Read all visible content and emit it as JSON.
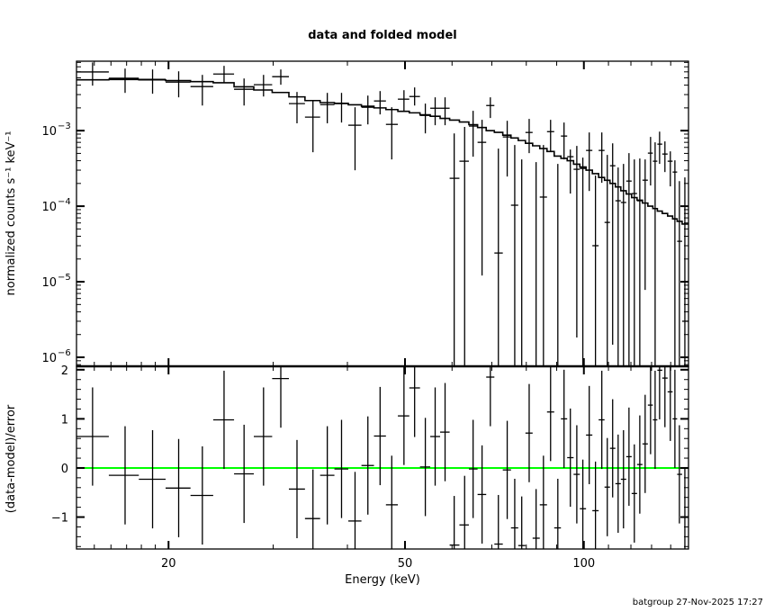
{
  "chart_data": [
    {
      "type": "scatter",
      "panel": "top",
      "title": "data and folded model",
      "ylabel": "normalized counts s⁻¹ keV⁻¹",
      "xscale": "log",
      "yscale": "log",
      "xlim": [
        14,
        150
      ],
      "ylim": [
        7.6e-07,
        0.0083
      ],
      "x_ticks": [
        20,
        50,
        100
      ],
      "y_ticks": [
        {
          "value": 0.001,
          "label": "10",
          "exp": "−3"
        },
        {
          "value": 0.0001,
          "label": "10",
          "exp": "−4"
        },
        {
          "value": 1e-05,
          "label": "10",
          "exp": "−5"
        },
        {
          "value": 1e-06,
          "label": "10",
          "exp": "−6"
        }
      ],
      "energy": [
        14.9,
        16.9,
        18.8,
        20.8,
        22.8,
        24.8,
        26.8,
        28.9,
        30.9,
        32.9,
        35.0,
        37.0,
        39.1,
        41.2,
        43.3,
        45.4,
        47.5,
        49.8,
        51.9,
        54.1,
        56.2,
        58.4,
        60.5,
        63.0,
        65.1,
        67.4,
        69.6,
        71.8,
        74.3,
        76.5,
        78.6,
        80.9,
        83.1,
        85.5,
        87.9,
        90.4,
        92.6,
        94.9,
        97.3,
        99.6,
        102.1,
        104.6,
        107.2,
        109.5,
        111.8,
        114.2,
        116.6,
        119.1,
        121.6,
        124.2,
        126.8,
        129.5,
        131.8,
        134.1,
        136.9,
        139.8,
        142.3,
        144.8,
        147.9
      ],
      "data": [
        0.00598,
        0.00494,
        0.00477,
        0.00439,
        0.00383,
        0.00562,
        0.00353,
        0.00405,
        0.00518,
        0.00228,
        0.00151,
        0.00221,
        0.00228,
        0.00118,
        0.00204,
        0.00247,
        0.00121,
        0.00261,
        0.00283,
        0.00159,
        0.00198,
        0.00198,
        0.000234,
        0.000394,
        0.00115,
        0.0007,
        0.00215,
        2.4e-05,
        0.000826,
        0.000103,
        5e-07,
        0.000946,
        5e-07,
        0.000132,
        0.00097,
        5e-07,
        0.000848,
        0.000452,
        0.000308,
        0.000316,
        0.000547,
        3e-05,
        0.000547,
        6.1e-05,
        0.000343,
        0.000118,
        0.000112,
        0.000215,
        0.000147,
        0.000118,
        0.000221,
        0.000504,
        0.000394,
        0.000663,
        0.00049,
        0.000394,
        0.000283,
        3.43e-05,
        3e-06
      ],
      "upper": [
        0.008,
        0.00663,
        0.00645,
        0.0061,
        0.00547,
        0.0072,
        0.0049,
        0.00547,
        0.00645,
        0.00325,
        0.00247,
        0.00316,
        0.00316,
        0.00204,
        0.00291,
        0.00334,
        0.00204,
        0.00343,
        0.00373,
        0.00228,
        0.00276,
        0.00276,
        0.00092,
        0.00112,
        0.00183,
        0.00139,
        0.00276,
        0.000578,
        0.00135,
        0.000645,
        0.000416,
        0.00143,
        0.000383,
        0.000645,
        0.00139,
        0.000363,
        0.00128,
        0.000562,
        0.000628,
        0.000439,
        0.000946,
        0.000254,
        0.000946,
        0.000477,
        0.00068,
        0.000325,
        0.000363,
        0.000504,
        0.000416,
        0.000427,
        0.000416,
        0.000826,
        0.0007,
        0.00097,
        0.00072,
        0.000532,
        0.000405,
        0.000215,
        0.00024
      ],
      "lower": [
        0.00394,
        0.00316,
        0.00308,
        0.00276,
        0.00215,
        0.00427,
        0.00215,
        0.00283,
        0.00405,
        0.00125,
        0.000518,
        0.00125,
        0.00128,
        0.000299,
        0.00121,
        0.00164,
        0.000416,
        0.00178,
        0.00215,
        0.00092,
        0.00118,
        0.00118,
        null,
        null,
        0.000452,
        1.21e-05,
        0.00147,
        null,
        0.000247,
        null,
        null,
        0.000504,
        null,
        null,
        0.000532,
        null,
        0.000416,
        0.000147,
        1.83e-06,
        null,
        0.000159,
        null,
        0.000204,
        null,
        1.47e-06,
        null,
        null,
        null,
        null,
        null,
        7.8e-06,
        0.000188,
        null,
        0.000363,
        0.000283,
        0.000183,
        null,
        null,
        null
      ],
      "model": [
        0.0047,
        0.00475,
        0.0047,
        0.0046,
        0.00445,
        0.0043,
        0.0038,
        0.00345,
        0.0032,
        0.0028,
        0.0025,
        0.00235,
        0.0023,
        0.0022,
        0.0021,
        0.002,
        0.0019,
        0.0018,
        0.00172,
        0.00162,
        0.00155,
        0.00145,
        0.00138,
        0.0013,
        0.0012,
        0.0011,
        0.001,
        0.00095,
        0.00087,
        0.0008,
        0.00074,
        0.00068,
        0.00063,
        0.00058,
        0.00053,
        0.00046,
        0.00043,
        0.0004,
        0.00036,
        0.00033,
        0.0003,
        0.00027,
        0.00024,
        0.00022,
        0.0002,
        0.00018,
        0.00016,
        0.000145,
        0.00013,
        0.00012,
        0.00011,
        0.0001,
        9.3e-05,
        8.6e-05,
        8e-05,
        7.4e-05,
        6.8e-05,
        6.3e-05,
        5.8e-05
      ]
    },
    {
      "type": "scatter",
      "panel": "bottom",
      "xlabel": "Energy (keV)",
      "ylabel": "(data-model)/error",
      "xscale": "log",
      "xlim": [
        14,
        150
      ],
      "ylim": [
        -1.65,
        2.07
      ],
      "x_ticks": [
        20,
        50,
        100
      ],
      "y_ticks": [
        2,
        1,
        0,
        -1
      ],
      "zero_line_color": "#00ff00",
      "residual": [
        0.64,
        -0.15,
        -0.23,
        -0.41,
        -0.56,
        0.98,
        -0.12,
        0.64,
        1.82,
        -0.43,
        -1.03,
        -0.15,
        -0.02,
        -1.08,
        0.05,
        0.65,
        -0.75,
        1.06,
        1.63,
        0.02,
        0.64,
        0.73,
        -1.57,
        -1.16,
        -0.02,
        -0.54,
        1.85,
        -1.55,
        -0.04,
        -1.22,
        -1.58,
        0.71,
        -1.43,
        -0.75,
        1.14,
        -1.22,
        1.0,
        0.21,
        -0.13,
        -0.83,
        0.67,
        -0.87,
        0.98,
        -0.39,
        0.4,
        -0.32,
        -0.23,
        0.23,
        -0.52,
        0.07,
        0.49,
        1.28,
        0.98,
        1.99,
        1.83,
        1.55,
        1.0,
        -0.13,
        -1.0
      ],
      "residual_error": 1.0
    }
  ],
  "footer": "batgroup 27-Nov-2025 17:27"
}
